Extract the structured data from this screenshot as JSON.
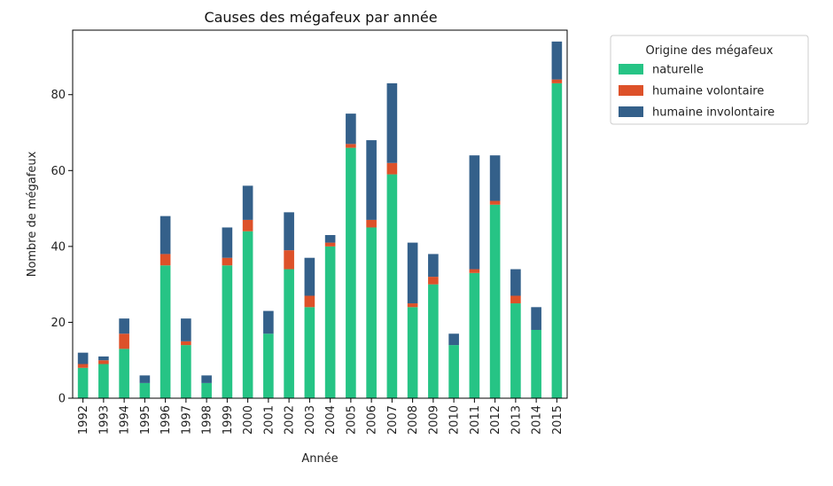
{
  "chart_data": {
    "type": "bar",
    "stacked": true,
    "title": "Causes des mégafeux par année",
    "xlabel": "Année",
    "ylabel": "Nombre de mégafeux",
    "ylim": [
      0,
      97
    ],
    "yticks": [
      0,
      20,
      40,
      60,
      80
    ],
    "categories": [
      "1992",
      "1993",
      "1994",
      "1995",
      "1996",
      "1997",
      "1998",
      "1999",
      "2000",
      "2001",
      "2002",
      "2003",
      "2004",
      "2005",
      "2006",
      "2007",
      "2008",
      "2009",
      "2010",
      "2011",
      "2012",
      "2013",
      "2014",
      "2015"
    ],
    "legend": {
      "title": "Origine des mégafeux",
      "placement": "outside-top-right"
    },
    "series": [
      {
        "name": "naturelle",
        "color": "#26c485",
        "values": [
          8,
          9,
          13,
          4,
          35,
          14,
          4,
          35,
          44,
          17,
          34,
          24,
          40,
          66,
          45,
          59,
          24,
          30,
          14,
          33,
          51,
          25,
          18,
          83
        ]
      },
      {
        "name": "humaine volontaire",
        "color": "#dd5129",
        "values": [
          1,
          1,
          4,
          0,
          3,
          1,
          0,
          2,
          3,
          0,
          5,
          3,
          1,
          1,
          2,
          3,
          1,
          2,
          0,
          1,
          1,
          2,
          0,
          1
        ]
      },
      {
        "name": "humaine involontaire",
        "color": "#34608a",
        "values": [
          3,
          1,
          4,
          2,
          10,
          6,
          2,
          8,
          9,
          6,
          10,
          10,
          2,
          8,
          21,
          21,
          16,
          6,
          3,
          30,
          12,
          7,
          6,
          10
        ]
      }
    ]
  }
}
